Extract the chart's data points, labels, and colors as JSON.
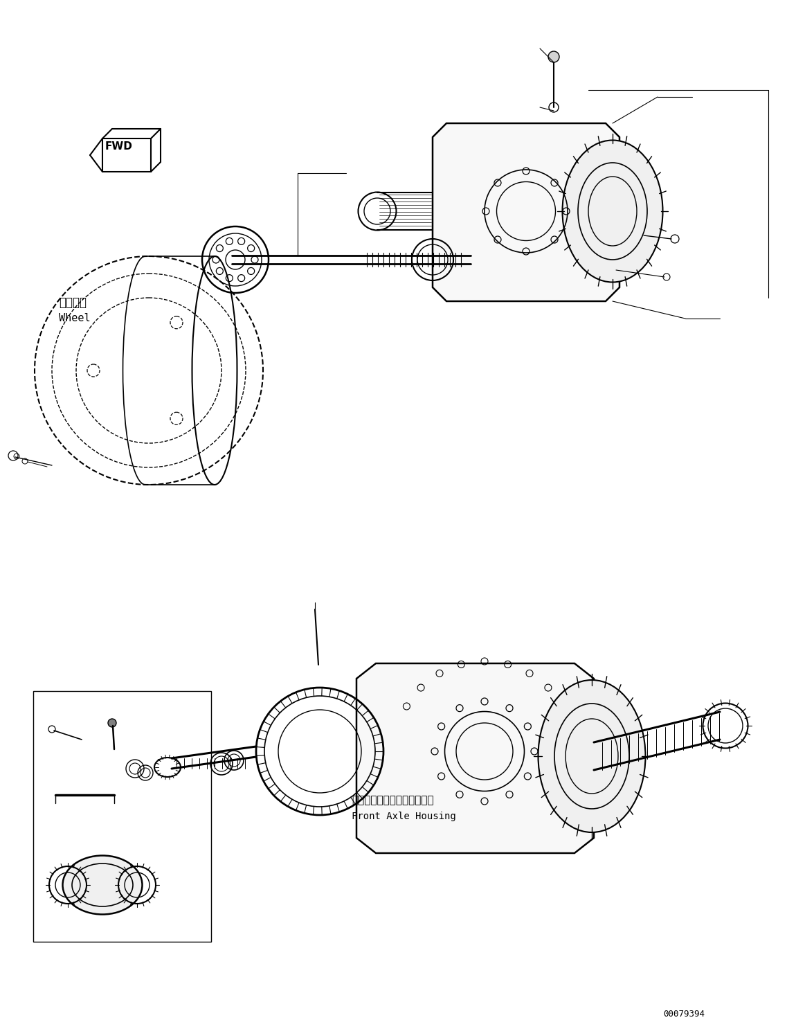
{
  "background_color": "#ffffff",
  "line_color": "#000000",
  "fig_width": 11.37,
  "fig_height": 14.86,
  "dpi": 100,
  "label_wheel_jp": "ホイール",
  "label_wheel_en": "Wheel",
  "label_front_axle_jp": "フロントアクスルハウジング",
  "label_front_axle_en": "Front Axle Housing",
  "part_number": "00079394"
}
